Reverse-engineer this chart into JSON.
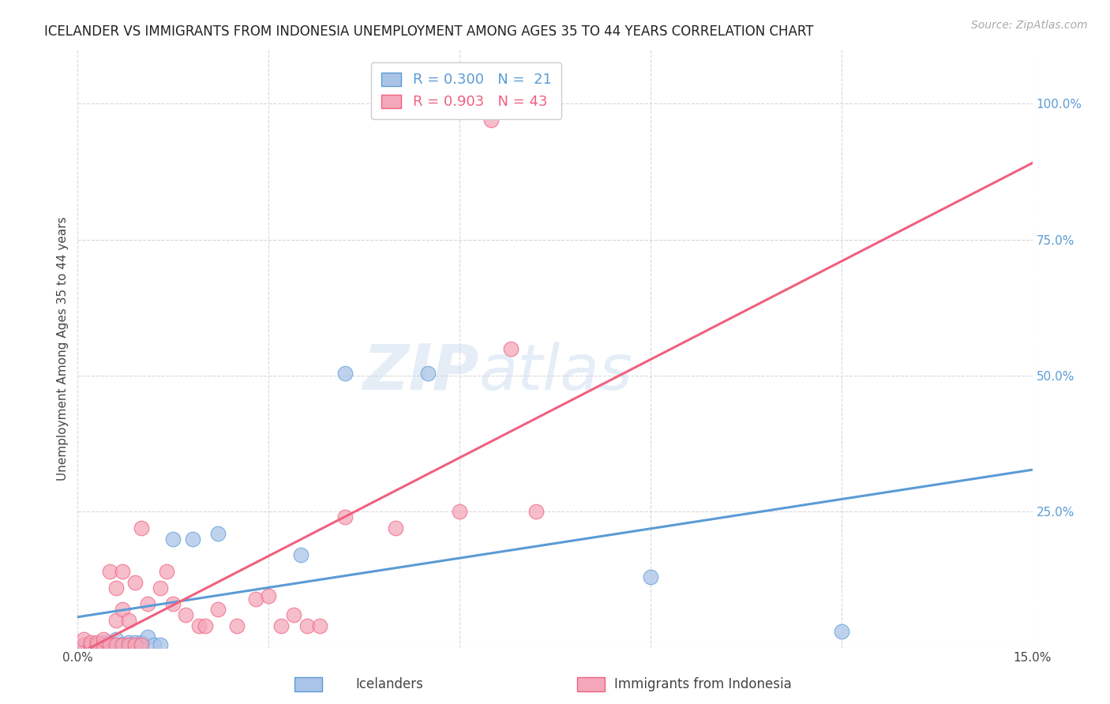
{
  "title": "ICELANDER VS IMMIGRANTS FROM INDONESIA UNEMPLOYMENT AMONG AGES 35 TO 44 YEARS CORRELATION CHART",
  "source": "Source: ZipAtlas.com",
  "ylabel": "Unemployment Among Ages 35 to 44 years",
  "xlim": [
    0.0,
    0.15
  ],
  "ylim": [
    0.0,
    1.1
  ],
  "xticks": [
    0.0,
    0.03,
    0.06,
    0.09,
    0.12,
    0.15
  ],
  "xtick_labels": [
    "0.0%",
    "",
    "",
    "",
    "",
    "15.0%"
  ],
  "yticks_right": [
    0.0,
    0.25,
    0.5,
    0.75,
    1.0
  ],
  "ytick_labels_right": [
    "",
    "25.0%",
    "50.0%",
    "75.0%",
    "100.0%"
  ],
  "color_icelander": "#aac4e8",
  "color_indonesia": "#f4a7b9",
  "color_icelander_line": "#5b9bd5",
  "color_indonesia_line": "#f06080",
  "color_icelander_text": "#5b9bd5",
  "color_indonesia_text": "#f06080",
  "watermark": "ZIPatlas",
  "icelander_points_x": [
    0.001,
    0.002,
    0.003,
    0.004,
    0.005,
    0.006,
    0.007,
    0.008,
    0.009,
    0.01,
    0.011,
    0.012,
    0.013,
    0.015,
    0.018,
    0.022,
    0.035,
    0.042,
    0.055,
    0.09,
    0.12
  ],
  "icelander_points_y": [
    0.005,
    0.005,
    0.005,
    0.01,
    0.01,
    0.015,
    0.005,
    0.01,
    0.01,
    0.01,
    0.02,
    0.005,
    0.005,
    0.2,
    0.2,
    0.21,
    0.17,
    0.505,
    0.505,
    0.13,
    0.03
  ],
  "indonesia_points_x": [
    0.001,
    0.001,
    0.002,
    0.002,
    0.003,
    0.003,
    0.004,
    0.004,
    0.005,
    0.005,
    0.006,
    0.006,
    0.006,
    0.007,
    0.007,
    0.007,
    0.008,
    0.008,
    0.009,
    0.009,
    0.01,
    0.01,
    0.011,
    0.013,
    0.014,
    0.015,
    0.017,
    0.019,
    0.02,
    0.022,
    0.025,
    0.028,
    0.03,
    0.032,
    0.034,
    0.036,
    0.038,
    0.042,
    0.05,
    0.06,
    0.065,
    0.068,
    0.072
  ],
  "indonesia_points_y": [
    0.005,
    0.015,
    0.005,
    0.01,
    0.005,
    0.01,
    0.005,
    0.015,
    0.005,
    0.14,
    0.005,
    0.05,
    0.11,
    0.005,
    0.07,
    0.14,
    0.005,
    0.05,
    0.005,
    0.12,
    0.005,
    0.22,
    0.08,
    0.11,
    0.14,
    0.08,
    0.06,
    0.04,
    0.04,
    0.07,
    0.04,
    0.09,
    0.095,
    0.04,
    0.06,
    0.04,
    0.04,
    0.24,
    0.22,
    0.25,
    0.97,
    0.55,
    0.25
  ],
  "background_color": "#ffffff",
  "grid_color": "#d8d8d8"
}
